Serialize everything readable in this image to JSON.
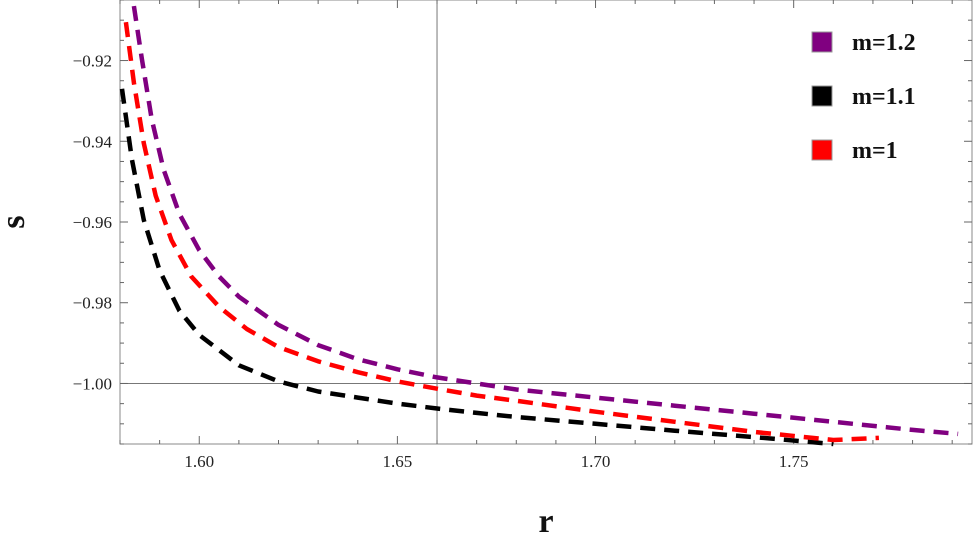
{
  "chart_data": {
    "type": "line",
    "xlabel": "r",
    "ylabel": "s",
    "xlim": [
      1.58,
      1.795
    ],
    "ylim": [
      -1.015,
      -0.905
    ],
    "axis_cross": {
      "x": 1.66,
      "y": -1.0
    },
    "x_ticks": [
      1.6,
      1.65,
      1.7,
      1.75
    ],
    "x_tick_labels": [
      "1.60",
      "1.65",
      "1.70",
      "1.75"
    ],
    "y_ticks": [
      -0.92,
      -0.94,
      -0.96,
      -0.98,
      -1.0
    ],
    "y_tick_labels": [
      "−0.92",
      "−0.94",
      "−0.96",
      "−0.98",
      "−1.00"
    ],
    "grid": false,
    "legend_position": "top-right",
    "series": [
      {
        "name": "m=1.2",
        "color": "#800080",
        "dash": "dashed",
        "x": [
          1.5835,
          1.5855,
          1.588,
          1.591,
          1.595,
          1.6,
          1.605,
          1.61,
          1.62,
          1.63,
          1.64,
          1.65,
          1.66,
          1.67,
          1.68,
          1.7,
          1.72,
          1.74,
          1.76,
          1.78,
          1.7915
        ],
        "y": [
          -0.9065,
          -0.9195,
          -0.9345,
          -0.947,
          -0.958,
          -0.967,
          -0.9735,
          -0.9785,
          -0.9855,
          -0.9905,
          -0.994,
          -0.9965,
          -0.9985,
          -1.0,
          -1.0015,
          -1.0035,
          -1.0055,
          -1.0075,
          -1.0095,
          -1.0115,
          -1.0125
        ]
      },
      {
        "name": "m=1.1",
        "color": "#000000",
        "dash": "dashed",
        "x": [
          1.5805,
          1.583,
          1.586,
          1.59,
          1.595,
          1.6,
          1.61,
          1.62,
          1.63,
          1.64,
          1.65,
          1.66,
          1.67,
          1.68,
          1.7,
          1.72,
          1.74,
          1.76
        ],
        "y": [
          -0.927,
          -0.9445,
          -0.9595,
          -0.972,
          -0.982,
          -0.988,
          -0.9955,
          -0.9995,
          -1.002,
          -1.0035,
          -1.005,
          -1.0062,
          -1.0073,
          -1.0083,
          -1.01,
          -1.0117,
          -1.0133,
          -1.015
        ]
      },
      {
        "name": "m=1",
        "color": "#ff0000",
        "dash": "dashed",
        "x": [
          1.5815,
          1.5835,
          1.586,
          1.589,
          1.593,
          1.598,
          1.605,
          1.612,
          1.62,
          1.63,
          1.64,
          1.65,
          1.66,
          1.67,
          1.68,
          1.7,
          1.72,
          1.74,
          1.76,
          1.7715
        ],
        "y": [
          -0.9105,
          -0.9255,
          -0.9405,
          -0.9535,
          -0.9645,
          -0.9735,
          -0.981,
          -0.9865,
          -0.991,
          -0.9945,
          -0.9972,
          -0.9995,
          -1.0013,
          -1.003,
          -1.0043,
          -1.007,
          -1.0095,
          -1.012,
          -1.014,
          -1.0135
        ]
      }
    ]
  }
}
